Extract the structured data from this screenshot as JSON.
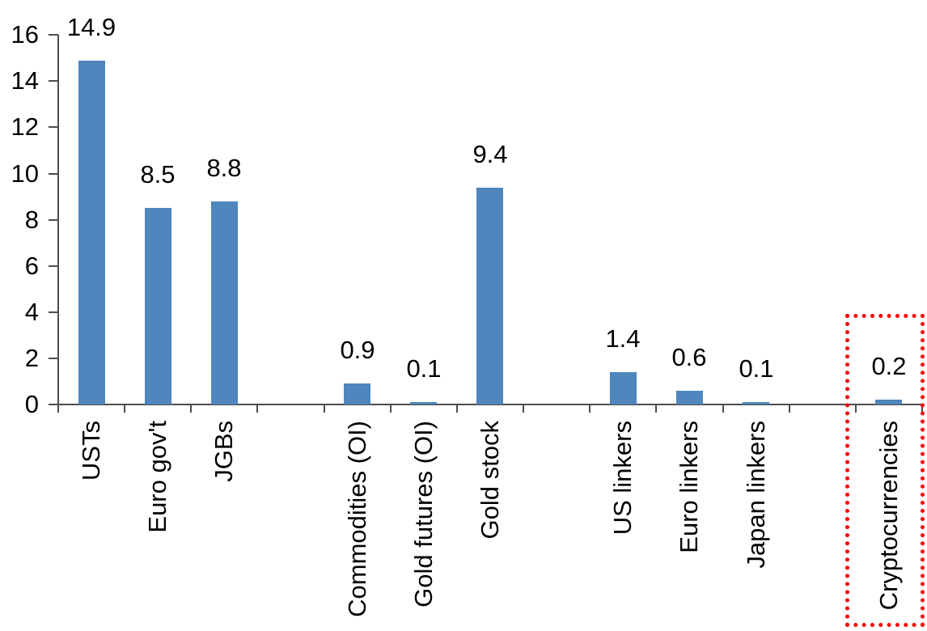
{
  "chart_data": {
    "type": "bar",
    "title": "",
    "xlabel": "",
    "ylabel": "",
    "categories": [
      "USTs",
      "Euro gov't",
      "JGBs",
      "Commodities (OI)",
      "Gold futures (OI)",
      "Gold stock",
      "US linkers",
      "Euro linkers",
      "Japan linkers",
      "Cryptocurrencies"
    ],
    "values": [
      14.9,
      8.5,
      8.8,
      0.9,
      0.1,
      9.4,
      1.4,
      0.6,
      0.1,
      0.2
    ],
    "data_labels": [
      "14.9",
      "8.5",
      "8.8",
      "0.9",
      "0.1",
      "9.4",
      "1.4",
      "0.6",
      "0.1",
      "0.2"
    ],
    "group_slots": [
      0,
      1,
      2,
      4,
      5,
      6,
      8,
      9,
      10,
      12
    ],
    "total_slots": 13,
    "y_axis": {
      "min": 0,
      "max": 16,
      "step": 2,
      "tick_labels": [
        "0",
        "2",
        "4",
        "6",
        "8",
        "10",
        "12",
        "14",
        "16"
      ]
    },
    "grid": "off",
    "legend": "none",
    "bar_color": "#4E86BD",
    "axis_color": "#4d4d4d",
    "text_color": "#000000",
    "annotation": {
      "shape": "dotted-rectangle",
      "color": "#FF0000",
      "highlights_category": "Cryptocurrencies"
    }
  }
}
